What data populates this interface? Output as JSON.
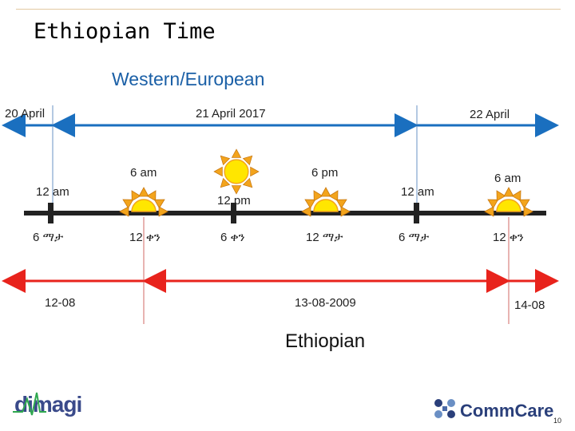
{
  "title": "Ethiopian Time",
  "western_label": "Western/European",
  "ethiopian_label": "Ethiopian",
  "western_dates": {
    "left": "20 April",
    "center": "21 April 2017",
    "right": "22 April"
  },
  "times_western": {
    "t1": "12 am",
    "t2": "6 am",
    "t3": "12 pm",
    "t4": "6 pm",
    "t5": "12 am",
    "t6": "6 am"
  },
  "times_ethiopian": {
    "t1": "6 ማታ",
    "t2": "12 ቀን",
    "t3": "6 ቀን",
    "t4": "12 ማታ",
    "t5": "6 ማታ",
    "t6": "12 ቀን"
  },
  "ethiopian_dates": {
    "left": "12-08",
    "center": "13-08-2009",
    "right": "14-08"
  },
  "logos": {
    "dimagi": "dimagi",
    "commcare": "CommCare"
  },
  "page_number": "10",
  "colors": {
    "western_line": "#1a6fbf",
    "ethiopian_line": "#e8231c",
    "timeline": "#222222",
    "sun_fill": "#ffe600",
    "ray_fill": "#f3a41c"
  }
}
